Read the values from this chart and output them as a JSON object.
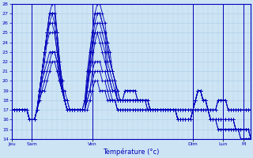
{
  "xlabel": "Température (°c)",
  "ylim": [
    14,
    28
  ],
  "yticks": [
    14,
    15,
    16,
    17,
    18,
    19,
    20,
    21,
    22,
    23,
    24,
    25,
    26,
    27,
    28
  ],
  "bg_color": "#cce4f4",
  "grid_color": "#aacce4",
  "line_color": "#0000bb",
  "tick_label_color": "#0000bb",
  "label_color": "#0000bb",
  "day_labels": [
    "Jeu",
    "Sam",
    "Ven",
    "Dim",
    "Lun",
    "M"
  ],
  "day_positions": [
    0,
    8,
    32,
    72,
    84,
    92
  ],
  "n_points": 96,
  "xlim": [
    0,
    95
  ],
  "series": [
    [
      17,
      17,
      17,
      17,
      17,
      17,
      17,
      16,
      16,
      16,
      17,
      18,
      19,
      19,
      20,
      21,
      22,
      22,
      21,
      20,
      19,
      19,
      18,
      17,
      17,
      17,
      17,
      17,
      17,
      17,
      17,
      18,
      19,
      20,
      20,
      19,
      19,
      19,
      18,
      18,
      18,
      18,
      17,
      17,
      17,
      17,
      17,
      17,
      17,
      17,
      17,
      17,
      17,
      17,
      17,
      17,
      17,
      17,
      17,
      17,
      17,
      17,
      17,
      17,
      17,
      17,
      17,
      17,
      17,
      17,
      17,
      17,
      17,
      17,
      17,
      17,
      17,
      17,
      17,
      17,
      17,
      17,
      18,
      18,
      18,
      18,
      17,
      17,
      17,
      17,
      17,
      17,
      17,
      17,
      17,
      17
    ],
    [
      17,
      17,
      17,
      17,
      17,
      17,
      17,
      16,
      16,
      16,
      17,
      18,
      19,
      20,
      21,
      22,
      23,
      23,
      22,
      20,
      19,
      18,
      18,
      17,
      17,
      17,
      17,
      17,
      17,
      17,
      18,
      19,
      20,
      21,
      21,
      21,
      20,
      20,
      19,
      18,
      18,
      18,
      17,
      17,
      17,
      17,
      17,
      17,
      17,
      17,
      17,
      17,
      17,
      17,
      17,
      17,
      17,
      17,
      17,
      17,
      17,
      17,
      17,
      17,
      17,
      17,
      17,
      17,
      17,
      17,
      17,
      17,
      17,
      17,
      17,
      17,
      17,
      17,
      17,
      17,
      17,
      17,
      18,
      18,
      18,
      18,
      17,
      17,
      17,
      17,
      17,
      17,
      17,
      17,
      17,
      17
    ],
    [
      17,
      17,
      17,
      17,
      17,
      17,
      17,
      16,
      16,
      16,
      17,
      18,
      20,
      21,
      22,
      23,
      23,
      23,
      22,
      20,
      19,
      18,
      17,
      17,
      17,
      17,
      17,
      17,
      17,
      17,
      18,
      19,
      21,
      22,
      22,
      22,
      21,
      21,
      20,
      19,
      18,
      18,
      17,
      17,
      17,
      17,
      17,
      17,
      17,
      17,
      17,
      17,
      17,
      17,
      17,
      17,
      17,
      17,
      17,
      17,
      17,
      17,
      17,
      17,
      17,
      17,
      17,
      17,
      17,
      17,
      17,
      17,
      17,
      17,
      17,
      17,
      17,
      17,
      17,
      17,
      17,
      17,
      18,
      18,
      18,
      18,
      17,
      17,
      17,
      17,
      17,
      17,
      17,
      17,
      17,
      17
    ],
    [
      17,
      17,
      17,
      17,
      17,
      17,
      17,
      16,
      16,
      16,
      17,
      19,
      20,
      22,
      24,
      25,
      25,
      25,
      23,
      21,
      19,
      18,
      17,
      17,
      17,
      17,
      17,
      17,
      17,
      17,
      19,
      21,
      22,
      24,
      25,
      24,
      23,
      22,
      21,
      20,
      19,
      19,
      18,
      18,
      18,
      18,
      18,
      18,
      18,
      18,
      18,
      18,
      18,
      18,
      18,
      17,
      17,
      17,
      17,
      17,
      17,
      17,
      17,
      17,
      17,
      17,
      16,
      16,
      16,
      16,
      16,
      16,
      17,
      18,
      19,
      19,
      18,
      18,
      17,
      16,
      16,
      16,
      16,
      16,
      16,
      16,
      16,
      16,
      16,
      15,
      15,
      15,
      15,
      15,
      15,
      14
    ],
    [
      17,
      17,
      17,
      17,
      17,
      17,
      17,
      16,
      16,
      16,
      17,
      19,
      21,
      23,
      24,
      26,
      26,
      25,
      23,
      21,
      19,
      18,
      17,
      17,
      17,
      17,
      17,
      17,
      17,
      17,
      19,
      21,
      23,
      25,
      25,
      25,
      24,
      23,
      21,
      20,
      19,
      19,
      18,
      18,
      18,
      18,
      18,
      18,
      18,
      18,
      18,
      18,
      18,
      18,
      18,
      17,
      17,
      17,
      17,
      17,
      17,
      17,
      17,
      17,
      17,
      17,
      16,
      16,
      16,
      16,
      16,
      16,
      17,
      18,
      19,
      19,
      18,
      18,
      17,
      16,
      16,
      16,
      16,
      16,
      16,
      16,
      16,
      16,
      16,
      15,
      15,
      15,
      15,
      15,
      15,
      14
    ],
    [
      17,
      17,
      17,
      17,
      17,
      17,
      17,
      16,
      16,
      16,
      17,
      19,
      21,
      23,
      25,
      26,
      27,
      26,
      24,
      21,
      19,
      18,
      17,
      17,
      17,
      17,
      17,
      17,
      17,
      17,
      19,
      22,
      24,
      25,
      26,
      26,
      25,
      24,
      22,
      21,
      20,
      19,
      18,
      18,
      18,
      18,
      18,
      18,
      18,
      18,
      18,
      18,
      18,
      18,
      18,
      17,
      17,
      17,
      17,
      17,
      17,
      17,
      17,
      17,
      17,
      17,
      16,
      16,
      16,
      16,
      16,
      16,
      17,
      18,
      19,
      19,
      18,
      18,
      17,
      16,
      16,
      16,
      16,
      16,
      16,
      16,
      16,
      16,
      16,
      15,
      15,
      15,
      15,
      15,
      15,
      14
    ],
    [
      17,
      17,
      17,
      17,
      17,
      17,
      17,
      16,
      16,
      16,
      17,
      19,
      21,
      23,
      25,
      27,
      27,
      27,
      25,
      22,
      19,
      18,
      17,
      17,
      17,
      17,
      17,
      17,
      17,
      17,
      20,
      22,
      24,
      26,
      27,
      27,
      26,
      25,
      23,
      22,
      21,
      20,
      18,
      18,
      18,
      18,
      18,
      18,
      18,
      18,
      18,
      18,
      18,
      18,
      18,
      17,
      17,
      17,
      17,
      17,
      17,
      17,
      17,
      17,
      17,
      17,
      16,
      16,
      16,
      16,
      16,
      16,
      17,
      18,
      19,
      19,
      18,
      18,
      17,
      16,
      16,
      16,
      16,
      16,
      16,
      16,
      16,
      16,
      16,
      15,
      15,
      15,
      15,
      15,
      15,
      14
    ],
    [
      17,
      17,
      17,
      17,
      17,
      17,
      17,
      16,
      16,
      16,
      17,
      19,
      21,
      23,
      25,
      27,
      27,
      27,
      25,
      22,
      20,
      18,
      17,
      17,
      17,
      17,
      17,
      17,
      17,
      18,
      20,
      23,
      25,
      27,
      27,
      27,
      26,
      25,
      24,
      22,
      21,
      20,
      19,
      18,
      18,
      19,
      19,
      19,
      19,
      19,
      18,
      18,
      18,
      18,
      17,
      17,
      17,
      17,
      17,
      17,
      17,
      17,
      17,
      17,
      17,
      17,
      16,
      16,
      16,
      16,
      16,
      16,
      17,
      18,
      19,
      19,
      18,
      18,
      17,
      16,
      16,
      16,
      15,
      15,
      15,
      15,
      15,
      15,
      15,
      15,
      15,
      14,
      14,
      14,
      14,
      14
    ],
    [
      17,
      17,
      17,
      17,
      17,
      17,
      17,
      16,
      16,
      16,
      17,
      19,
      21,
      23,
      25,
      27,
      28,
      28,
      25,
      22,
      20,
      18,
      17,
      17,
      17,
      17,
      17,
      17,
      17,
      18,
      21,
      23,
      25,
      27,
      28,
      28,
      27,
      26,
      24,
      23,
      21,
      20,
      19,
      18,
      18,
      19,
      19,
      19,
      19,
      19,
      18,
      18,
      18,
      18,
      17,
      17,
      17,
      17,
      17,
      17,
      17,
      17,
      17,
      17,
      17,
      17,
      16,
      16,
      16,
      16,
      16,
      16,
      17,
      18,
      19,
      19,
      18,
      18,
      17,
      16,
      16,
      16,
      15,
      15,
      15,
      15,
      15,
      15,
      15,
      15,
      15,
      14,
      14,
      14,
      14,
      14
    ]
  ]
}
